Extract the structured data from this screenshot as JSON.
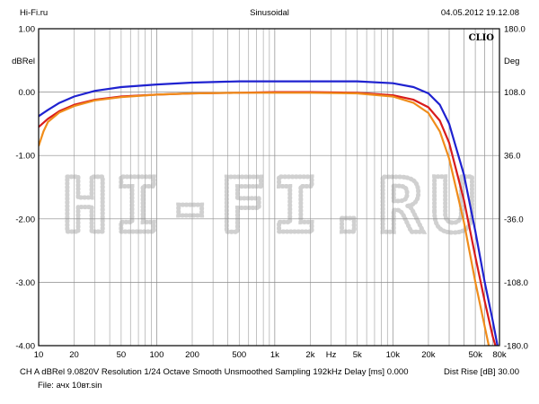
{
  "header": {
    "site": "Hi-Fi.ru",
    "mode": "Sinusoidal",
    "datetime": "04.05.2012 19.12.08"
  },
  "footer": {
    "line1": "CH A   dBRel 9.0820V  Resolution 1/24 Octave   Smooth Unsmoothed   Sampling 192kHz   Delay [ms] 0.000",
    "dist_rise": "Dist Rise [dB] 30.00",
    "line2": "File: ачх 10вт.sin"
  },
  "watermark": "HI-FI.RU",
  "chart_data": {
    "type": "line",
    "brand": "CLIO",
    "x_scale": "log",
    "xlim": [
      10,
      80000
    ],
    "x_ticks": [
      {
        "v": 10,
        "t": "10"
      },
      {
        "v": 20,
        "t": "20"
      },
      {
        "v": 50,
        "t": "50"
      },
      {
        "v": 100,
        "t": "100"
      },
      {
        "v": 200,
        "t": "200"
      },
      {
        "v": 500,
        "t": "500"
      },
      {
        "v": 1000,
        "t": "1k"
      },
      {
        "v": 2000,
        "t": "2k"
      },
      {
        "v": 5000,
        "t": "5k"
      },
      {
        "v": 10000,
        "t": "10k"
      },
      {
        "v": 20000,
        "t": "20k"
      },
      {
        "v": 50000,
        "t": "50k"
      },
      {
        "v": 80000,
        "t": "80k"
      }
    ],
    "x_unit": "Hz",
    "x_unit_position": 3000,
    "y_left": {
      "label": "dBRel",
      "lim": [
        -4,
        1
      ],
      "ticks": [
        {
          "v": 1,
          "t": "1.00"
        },
        {
          "v": 0,
          "t": "0.00"
        },
        {
          "v": -1,
          "t": "-1.00"
        },
        {
          "v": -2,
          "t": "-2.00"
        },
        {
          "v": -3,
          "t": "-3.00"
        },
        {
          "v": -4,
          "t": "-4.00"
        }
      ]
    },
    "y_right": {
      "label": "Deg",
      "lim": [
        -180,
        180
      ],
      "ticks": [
        {
          "v": 180,
          "t": "180.0"
        },
        {
          "v": 108,
          "t": "108.0"
        },
        {
          "v": 36,
          "t": "36.0"
        },
        {
          "v": -36,
          "t": "-36.0"
        },
        {
          "v": -108,
          "t": "-108.0"
        },
        {
          "v": -180,
          "t": "-180.0"
        }
      ]
    },
    "grid": true,
    "series": [
      {
        "color": "#1f22d0",
        "points": [
          [
            10,
            -0.38
          ],
          [
            12,
            -0.28
          ],
          [
            15,
            -0.17
          ],
          [
            20,
            -0.07
          ],
          [
            30,
            0.02
          ],
          [
            50,
            0.08
          ],
          [
            100,
            0.12
          ],
          [
            200,
            0.15
          ],
          [
            500,
            0.17
          ],
          [
            1000,
            0.17
          ],
          [
            2000,
            0.17
          ],
          [
            5000,
            0.17
          ],
          [
            10000,
            0.14
          ],
          [
            15000,
            0.08
          ],
          [
            20000,
            -0.02
          ],
          [
            25000,
            -0.2
          ],
          [
            30000,
            -0.5
          ],
          [
            40000,
            -1.3
          ],
          [
            50000,
            -2.2
          ],
          [
            60000,
            -3.0
          ],
          [
            70000,
            -3.6
          ],
          [
            77000,
            -4.0
          ]
        ]
      },
      {
        "color": "#d81b1b",
        "points": [
          [
            10,
            -0.55
          ],
          [
            12,
            -0.42
          ],
          [
            15,
            -0.3
          ],
          [
            20,
            -0.2
          ],
          [
            30,
            -0.12
          ],
          [
            50,
            -0.07
          ],
          [
            100,
            -0.04
          ],
          [
            200,
            -0.02
          ],
          [
            500,
            -0.01
          ],
          [
            1000,
            0
          ],
          [
            2000,
            0
          ],
          [
            5000,
            -0.01
          ],
          [
            10000,
            -0.05
          ],
          [
            15000,
            -0.12
          ],
          [
            20000,
            -0.24
          ],
          [
            25000,
            -0.45
          ],
          [
            30000,
            -0.8
          ],
          [
            40000,
            -1.7
          ],
          [
            50000,
            -2.6
          ],
          [
            60000,
            -3.3
          ],
          [
            70000,
            -3.85
          ],
          [
            74000,
            -4.0
          ]
        ]
      },
      {
        "color": "#f08c1a",
        "points": [
          [
            10,
            -0.85
          ],
          [
            11,
            -0.62
          ],
          [
            12,
            -0.47
          ],
          [
            15,
            -0.32
          ],
          [
            20,
            -0.22
          ],
          [
            30,
            -0.13
          ],
          [
            50,
            -0.08
          ],
          [
            100,
            -0.04
          ],
          [
            200,
            -0.02
          ],
          [
            500,
            -0.01
          ],
          [
            1000,
            -0.01
          ],
          [
            2000,
            -0.01
          ],
          [
            5000,
            -0.02
          ],
          [
            10000,
            -0.07
          ],
          [
            15000,
            -0.17
          ],
          [
            20000,
            -0.33
          ],
          [
            25000,
            -0.62
          ],
          [
            30000,
            -1.05
          ],
          [
            40000,
            -2.05
          ],
          [
            50000,
            -3.0
          ],
          [
            60000,
            -3.7
          ],
          [
            65000,
            -4.0
          ]
        ]
      }
    ]
  }
}
